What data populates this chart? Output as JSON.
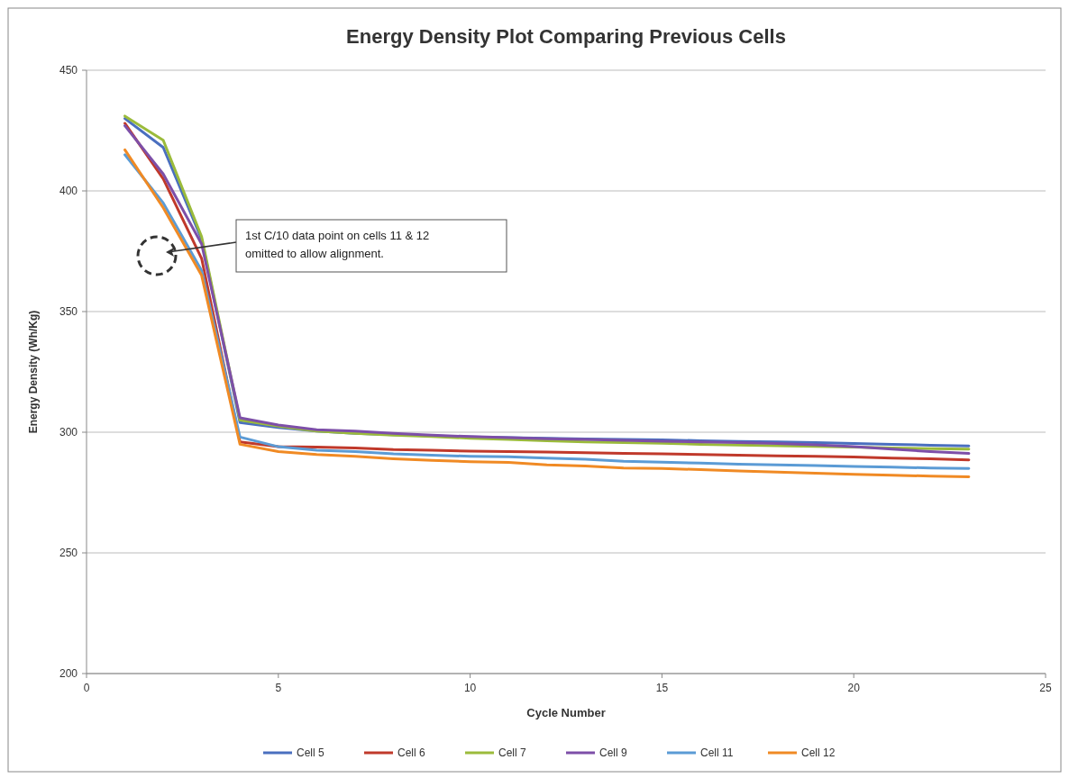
{
  "chart_data": {
    "type": "line",
    "title": "Energy Density Plot Comparing Previous Cells",
    "xlabel": "Cycle Number",
    "ylabel": "Energy Density (Wh/Kg)",
    "x": [
      1,
      2,
      3,
      4,
      5,
      6,
      7,
      8,
      9,
      10,
      11,
      12,
      13,
      14,
      15,
      16,
      17,
      18,
      19,
      20,
      21,
      22,
      23
    ],
    "series": [
      {
        "name": "Cell 5",
        "color": "#4a6fbf",
        "values": [
          430,
          418,
          380,
          304,
          302,
          300.5,
          299.5,
          299,
          298.5,
          298,
          297.8,
          297.5,
          297.2,
          297,
          296.8,
          296.5,
          296.2,
          296,
          295.7,
          295.3,
          295,
          294.6,
          294.3
        ]
      },
      {
        "name": "Cell 6",
        "color": "#c0392b",
        "values": [
          428,
          405,
          372,
          296,
          294,
          293.8,
          293.5,
          292.8,
          292.5,
          292.2,
          292,
          291.8,
          291.5,
          291.2,
          291,
          290.8,
          290.5,
          290.2,
          290,
          289.7,
          289.3,
          289,
          288.5
        ]
      },
      {
        "name": "Cell 7",
        "color": "#9bbb3b",
        "values": [
          431,
          421,
          381,
          305,
          302.5,
          300.5,
          299.5,
          298.8,
          298.2,
          297.5,
          297,
          296.5,
          296,
          295.7,
          295.4,
          295,
          294.7,
          294.4,
          294.1,
          293.8,
          293.5,
          293.2,
          293
        ]
      },
      {
        "name": "Cell 9",
        "color": "#7d4fa8",
        "values": [
          427,
          407,
          378,
          306,
          303,
          301,
          300.5,
          299.5,
          298.8,
          298.2,
          297.8,
          297.3,
          297,
          296.6,
          296.3,
          296,
          295.7,
          295.3,
          294.8,
          294,
          293,
          292,
          291.2
        ]
      },
      {
        "name": "Cell 11",
        "color": "#5b9bd5",
        "values": [
          415,
          395,
          367,
          298,
          294,
          292.5,
          292,
          291,
          290.5,
          290,
          289.8,
          289.3,
          288.8,
          288,
          287.6,
          287.2,
          286.8,
          286.5,
          286.2,
          285.8,
          285.5,
          285.2,
          285
        ]
      },
      {
        "name": "Cell 12",
        "color": "#f08a24",
        "values": [
          417,
          393,
          365,
          295,
          292,
          290.8,
          290,
          289,
          288.3,
          287.8,
          287.5,
          286.5,
          286,
          285.2,
          285,
          284.5,
          284,
          283.5,
          283,
          282.6,
          282.2,
          281.8,
          281.5
        ]
      }
    ],
    "xlim": [
      0,
      25
    ],
    "xticks": [
      0,
      5,
      10,
      15,
      20,
      25
    ],
    "ylim": [
      200,
      450
    ],
    "yticks": [
      200,
      250,
      300,
      350,
      400,
      450
    ],
    "grid": "y",
    "legend": "bottom",
    "marker": "none",
    "line_style": "solid",
    "annotations": [
      "1st C/10 data point on cells 11 & 12 omitted to allow alignment."
    ]
  }
}
